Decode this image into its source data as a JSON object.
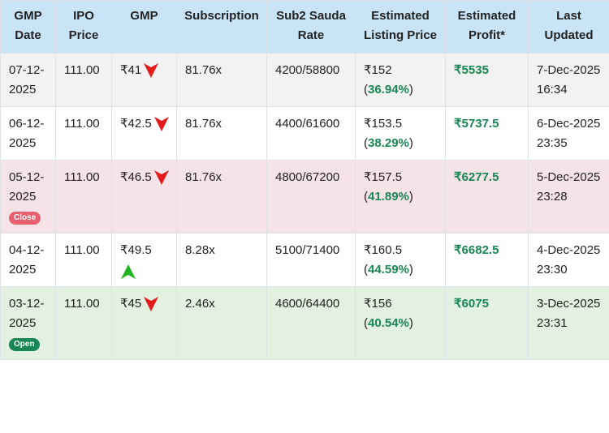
{
  "table": {
    "header": [
      "GMP Date",
      "IPO Price",
      "GMP",
      "Subscription",
      "Sub2 Sauda Rate",
      "Estimated Listing Price",
      "Estimated Profit*",
      "Last Updated"
    ],
    "rows": [
      {
        "date": "07-12-2025",
        "price": "111.00",
        "gmp": "₹41",
        "trend": "down",
        "subscription": "81.76x",
        "sauda": "4200/58800",
        "listing": "₹152",
        "change": "36.94%",
        "profit": "₹5535",
        "updated": "7-Dec-2025 16:34",
        "shade": "#f2f2f2"
      },
      {
        "date": "06-12-2025",
        "price": "111.00",
        "gmp": "₹42.5",
        "trend": "down",
        "subscription": "81.76x",
        "sauda": "4400/61600",
        "listing": "₹153.5",
        "change": "38.29%",
        "profit": "₹5737.5",
        "updated": "6-Dec-2025 23:35",
        "shade": "#ffffff"
      },
      {
        "date": "05-12-2025",
        "badge": "Close",
        "badge_color": "#e8606f",
        "price": "111.00",
        "gmp": "₹46.5",
        "trend": "down",
        "subscription": "81.76x",
        "sauda": "4800/67200",
        "listing": "₹157.5",
        "change": "41.89%",
        "profit": "₹6277.5",
        "updated": "5-Dec-2025 23:28",
        "shade": "#f6e3e8"
      },
      {
        "date": "04-12-2025",
        "price": "111.00",
        "gmp": "₹49.5",
        "trend": "up",
        "subscription": "8.28x",
        "sauda": "5100/71400",
        "listing": "₹160.5",
        "change": "44.59%",
        "profit": "₹6682.5",
        "updated": "4-Dec-2025 23:30",
        "shade": "#ffffff"
      },
      {
        "date": "03-12-2025",
        "badge": "Open",
        "badge_color": "#198754",
        "price": "111.00",
        "gmp": "₹45",
        "trend": "down",
        "subscription": "2.46x",
        "sauda": "4600/64400",
        "listing": "₹156",
        "change": "40.54%",
        "profit": "₹6075",
        "updated": "3-Dec-2025 23:31",
        "shade": "#e3f1e0"
      }
    ]
  }
}
